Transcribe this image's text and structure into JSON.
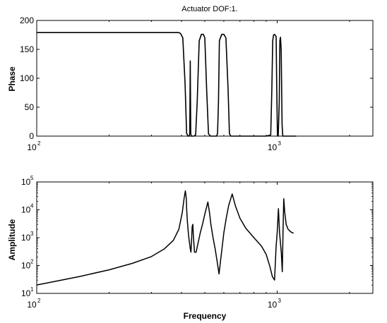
{
  "chart_data": [
    {
      "type": "line",
      "title": "Actuator DOF:1.",
      "xlabel": "",
      "ylabel": "Phase",
      "xscale": "log",
      "xlim": [
        100,
        2500
      ],
      "ylim": [
        0,
        200
      ],
      "x_ticks": [
        {
          "base": "10",
          "exp": "2",
          "value": 100
        },
        {
          "base": "10",
          "exp": "3",
          "value": 1000
        }
      ],
      "y_ticks": [
        {
          "label": "0",
          "value": 0
        },
        {
          "label": "50",
          "value": 50
        },
        {
          "label": "100",
          "value": 100
        },
        {
          "label": "150",
          "value": 150
        },
        {
          "label": "200",
          "value": 200
        }
      ],
      "grid": false,
      "series": [
        {
          "x": [
            100,
            200,
            320,
            380,
            390,
            397,
            405,
            414,
            420,
            426,
            431,
            433,
            435,
            437,
            439,
            441,
            450,
            458,
            465,
            474,
            484,
            493,
            500,
            509,
            518,
            528,
            540,
            550,
            560,
            565,
            570,
            575,
            588,
            600,
            612,
            625,
            633,
            642,
            650,
            656,
            664,
            670,
            800,
            900,
            940,
            950,
            958,
            966,
            975,
            990,
            996,
            1002,
            1010,
            1020,
            1026,
            1032,
            1039,
            1048,
            1055,
            1062,
            1075,
            1100,
            1200
          ],
          "y": [
            179,
            179,
            179,
            179,
            179,
            177,
            170,
            90,
            5,
            0,
            0,
            5,
            130,
            5,
            0,
            0,
            0,
            2,
            60,
            165,
            176,
            176,
            170,
            80,
            4,
            0,
            0,
            0,
            0,
            5,
            60,
            165,
            176,
            176,
            170,
            80,
            4,
            0,
            0,
            0,
            0,
            0,
            0,
            0,
            2,
            80,
            165,
            175,
            176,
            172,
            80,
            5,
            0,
            60,
            165,
            171,
            150,
            20,
            0,
            0,
            0,
            0,
            0
          ]
        }
      ]
    },
    {
      "type": "line",
      "title": "",
      "xlabel": "Frequency",
      "ylabel": "Amplitude",
      "xscale": "log",
      "yscale": "log",
      "xlim": [
        100,
        2500
      ],
      "ylim": [
        10,
        100000
      ],
      "x_ticks": [
        {
          "base": "10",
          "exp": "2",
          "value": 100
        },
        {
          "base": "10",
          "exp": "3",
          "value": 1000
        }
      ],
      "y_ticks": [
        {
          "base": "10",
          "exp": "1",
          "value": 10
        },
        {
          "base": "10",
          "exp": "2",
          "value": 100
        },
        {
          "base": "10",
          "exp": "3",
          "value": 1000
        },
        {
          "base": "10",
          "exp": "4",
          "value": 10000
        },
        {
          "base": "10",
          "exp": "5",
          "value": 100000
        }
      ],
      "grid": false,
      "series": [
        {
          "x": [
            100,
            150,
            200,
            250,
            300,
            340,
            370,
            390,
            403,
            410,
            415,
            419,
            420,
            423,
            428,
            435,
            438,
            441,
            443,
            446,
            448,
            453,
            460,
            468,
            478,
            490,
            502,
            515,
            523,
            530,
            541,
            552,
            562,
            573,
            587,
            600,
            614,
            628,
            650,
            670,
            700,
            740,
            800,
            860,
            900,
            930,
            955,
            975,
            990,
            1000,
            1012,
            1023,
            1040,
            1050,
            1058,
            1065,
            1075,
            1090,
            1110,
            1140,
            1170
          ],
          "y": [
            20,
            40,
            70,
            120,
            210,
            400,
            800,
            2000,
            8000,
            25000,
            48000,
            25000,
            12000,
            4000,
            1200,
            400,
            300,
            1000,
            2500,
            3000,
            1200,
            300,
            300,
            600,
            1400,
            3200,
            8000,
            19000,
            8000,
            3000,
            1000,
            400,
            150,
            50,
            300,
            1500,
            5000,
            14000,
            37000,
            14000,
            5000,
            2200,
            1000,
            500,
            250,
            100,
            40,
            30,
            500,
            1500,
            11000,
            1500,
            300,
            60,
            2000,
            25000,
            8000,
            3000,
            2000,
            1600,
            1450
          ]
        }
      ]
    }
  ]
}
